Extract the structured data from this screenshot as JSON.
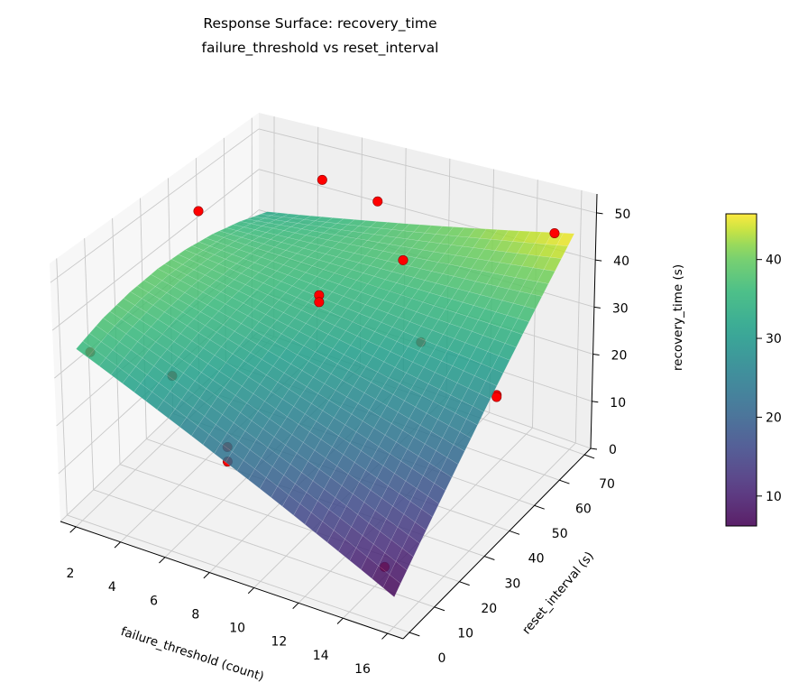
{
  "chart_data": {
    "type": "surface",
    "title": [
      "Response Surface: recovery_time",
      "failure_threshold vs reset_interval"
    ],
    "xlabel": "failure_threshold (count)",
    "ylabel": "reset_interval (s)",
    "zlabel": "recovery_time (s)",
    "xlim": [
      1.3,
      16.7
    ],
    "ylim": [
      -2.5,
      72.5
    ],
    "zlim": [
      0,
      54
    ],
    "xticks": [
      2,
      4,
      6,
      8,
      10,
      12,
      14,
      16
    ],
    "yticks": [
      0,
      10,
      20,
      30,
      40,
      50,
      60,
      70
    ],
    "zticks": [
      0,
      10,
      20,
      30,
      40,
      50
    ],
    "grid": true,
    "colormap": "viridis",
    "colorbar": {
      "range": [
        6.2,
        45.8
      ],
      "ticks": [
        10,
        20,
        30,
        40
      ],
      "placement": "right"
    },
    "surface": {
      "x": [
        2,
        4,
        6,
        8,
        10,
        12,
        14,
        16
      ],
      "y": [
        0,
        10,
        20,
        30,
        40,
        50,
        60,
        70
      ],
      "z": [
        [
          36.0,
          31.7,
          27.4,
          23.1,
          18.9,
          14.6,
          10.3,
          6.0
        ],
        [
          37.9,
          34.1,
          30.4,
          26.7,
          22.9,
          19.2,
          15.4,
          11.7
        ],
        [
          38.9,
          35.9,
          32.8,
          29.7,
          26.6,
          23.6,
          20.5,
          17.4
        ],
        [
          39.2,
          36.9,
          34.6,
          32.3,
          30.0,
          27.7,
          25.4,
          23.1
        ],
        [
          38.6,
          37.2,
          35.8,
          34.4,
          33.0,
          31.6,
          30.3,
          28.9
        ],
        [
          37.2,
          36.8,
          36.5,
          36.1,
          35.7,
          35.3,
          35.0,
          34.6
        ],
        [
          35.0,
          35.8,
          36.5,
          37.3,
          38.0,
          38.8,
          39.5,
          40.3
        ],
        [
          32.0,
          34.0,
          36.0,
          38.0,
          40.0,
          42.0,
          44.0,
          46.0
        ]
      ]
    },
    "points": [
      {
        "x": 2,
        "y": 45,
        "z": 45
      },
      {
        "x": 5,
        "y": 66,
        "z": 46
      },
      {
        "x": 8,
        "y": 62,
        "z": 47
      },
      {
        "x": 16,
        "y": 62,
        "z": 50
      },
      {
        "x": 2,
        "y": 5,
        "z": 33
      },
      {
        "x": 5,
        "y": 10,
        "z": 30
      },
      {
        "x": 8,
        "y": 5,
        "z": 22
      },
      {
        "x": 8,
        "y": 5,
        "z": 19
      },
      {
        "x": 8,
        "y": 40,
        "z": 37
      },
      {
        "x": 8,
        "y": 40,
        "z": 35.5
      },
      {
        "x": 10,
        "y": 55,
        "z": 40
      },
      {
        "x": 12,
        "y": 45,
        "z": 30
      },
      {
        "x": 16,
        "y": 40,
        "z": 27
      },
      {
        "x": 16,
        "y": 40,
        "z": 26.6
      },
      {
        "x": 15,
        "y": 5,
        "z": 8
      }
    ],
    "point_color": "#ff0000"
  }
}
